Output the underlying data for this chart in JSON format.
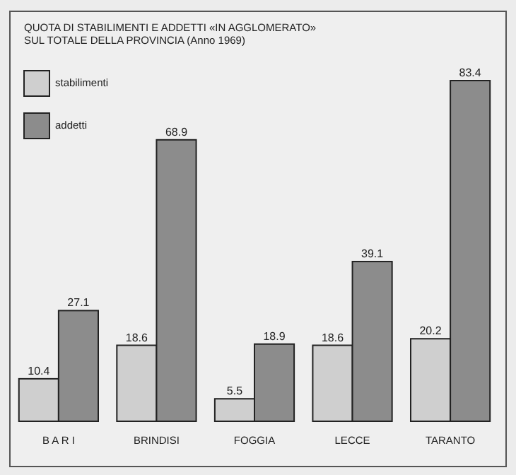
{
  "chart_data": {
    "type": "bar",
    "title": "QUOTA DI STABILIMENTI E ADDETTI «IN AGGLOMERATO»",
    "subtitle": "SUL TOTALE DELLA PROVINCIA (Anno 1969)",
    "categories": [
      "B A R I",
      "BRINDISI",
      "FOGGIA",
      "LECCE",
      "TARANTO"
    ],
    "series": [
      {
        "name": "stabilimenti",
        "color": "#cfcfcf",
        "values": [
          10.4,
          18.6,
          5.5,
          18.6,
          20.2
        ]
      },
      {
        "name": "addetti",
        "color": "#8c8c8c",
        "values": [
          27.1,
          68.9,
          18.9,
          39.1,
          83.4
        ]
      }
    ],
    "relative": false,
    "data_labels": true,
    "legend": "top left"
  }
}
